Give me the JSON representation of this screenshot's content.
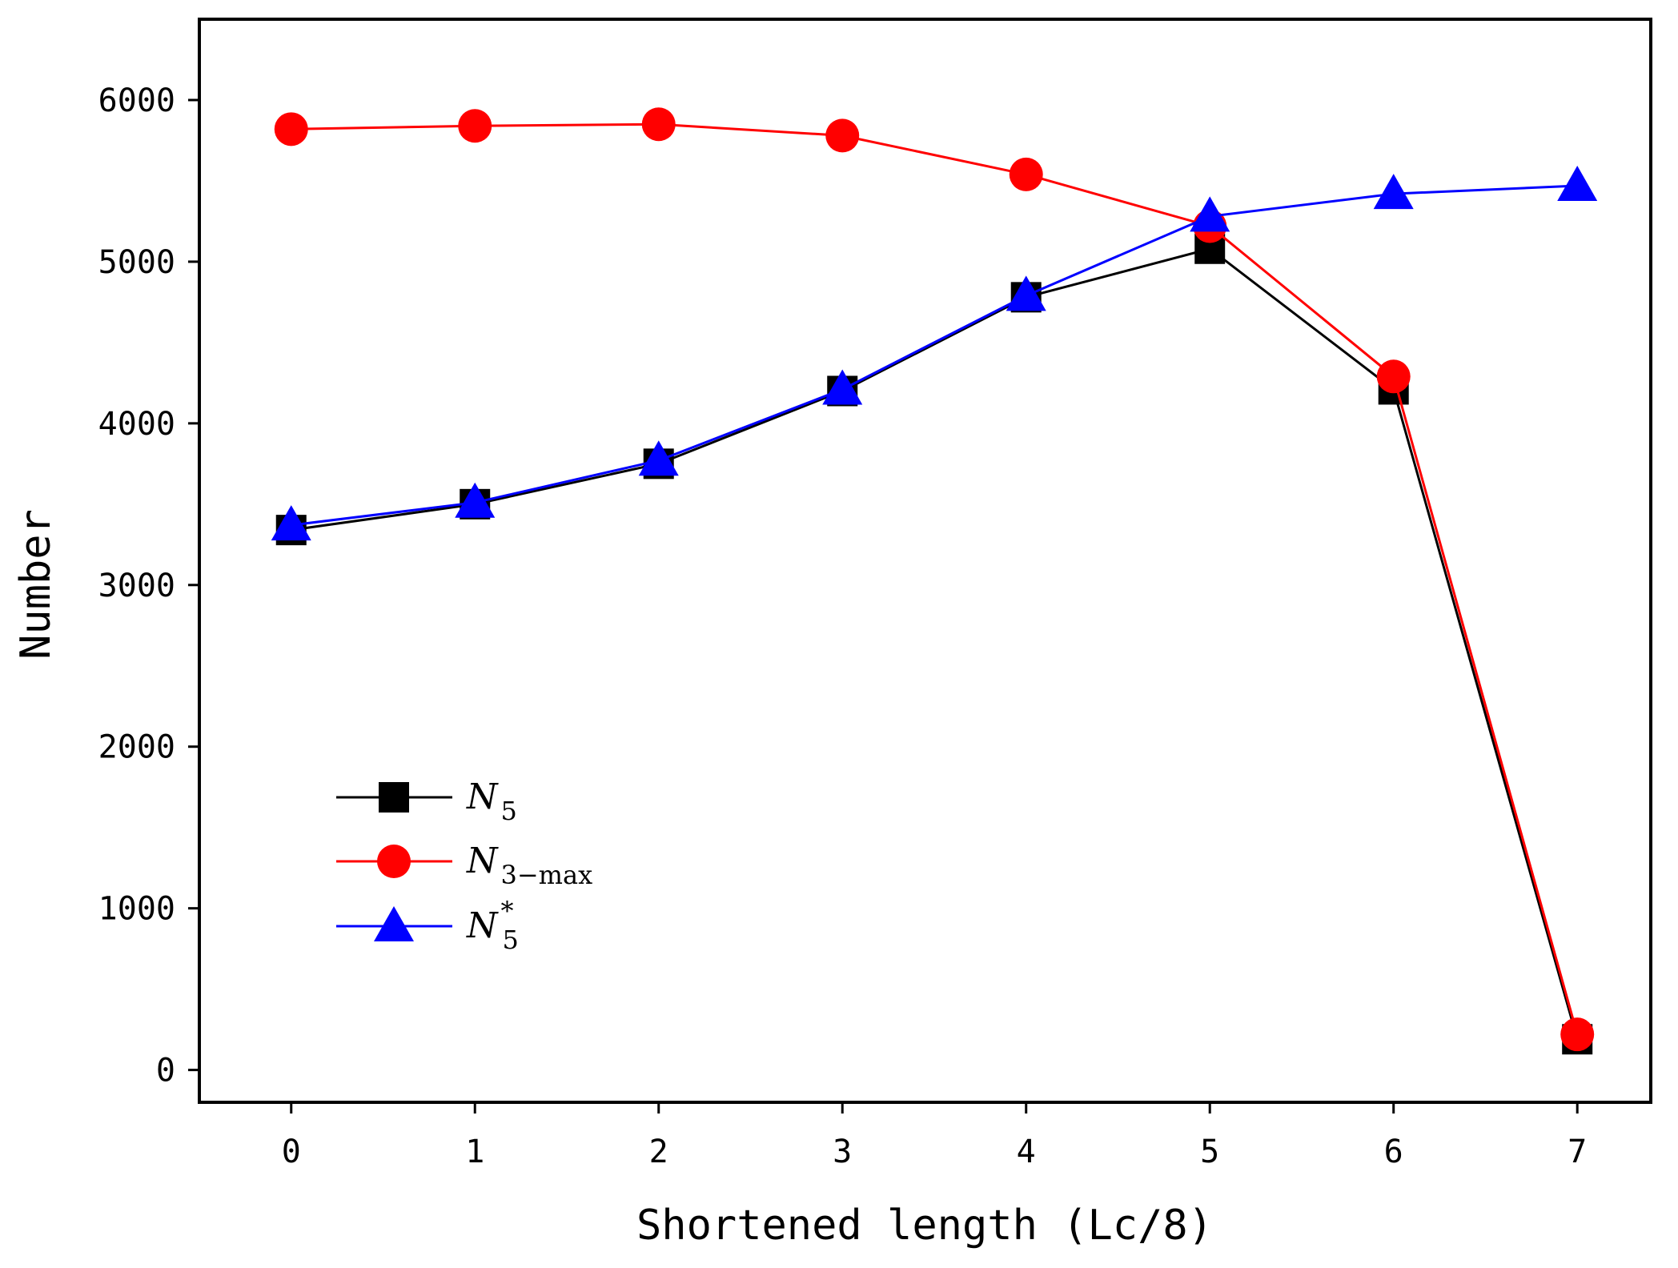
{
  "chart_data": {
    "type": "line",
    "title": "",
    "xlabel": "Shortened length (Lc/8)",
    "ylabel": "Number",
    "x": [
      0,
      1,
      2,
      3,
      4,
      5,
      6,
      7
    ],
    "xlim": [
      -0.5,
      7.4
    ],
    "ylim": [
      -200,
      6500
    ],
    "xticks": [
      "0",
      "1",
      "2",
      "3",
      "4",
      "5",
      "6",
      "7"
    ],
    "yticks": [
      "0",
      "1000",
      "2000",
      "3000",
      "4000",
      "5000",
      "6000"
    ],
    "grid": false,
    "legend_position": "lower-left",
    "series": [
      {
        "name": "N5",
        "legend_main": "N",
        "legend_sub": "5",
        "legend_sup": "",
        "color": "#000000",
        "marker": "square",
        "values": [
          3340,
          3500,
          3750,
          4200,
          4780,
          5080,
          4210,
          190
        ]
      },
      {
        "name": "N3-max",
        "legend_main": "N",
        "legend_sub": "3−max",
        "legend_sup": "",
        "color": "#ff0000",
        "marker": "circle",
        "values": [
          5820,
          5840,
          5850,
          5780,
          5540,
          5220,
          4290,
          220
        ]
      },
      {
        "name": "N5*",
        "legend_main": "N",
        "legend_sub": "5",
        "legend_sup": "*",
        "color": "#0000ff",
        "marker": "triangle",
        "values": [
          3370,
          3510,
          3770,
          4210,
          4790,
          5280,
          5420,
          5470
        ]
      }
    ]
  }
}
